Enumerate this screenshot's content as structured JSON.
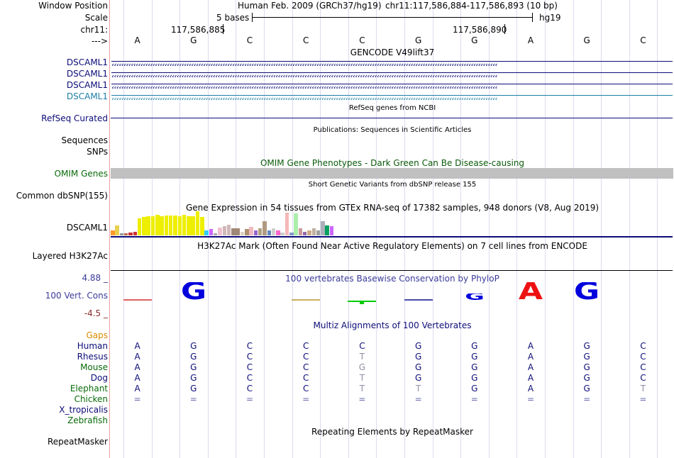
{
  "header": {
    "window_position_label": "Window Position",
    "scale_label": "Scale",
    "chrom_label": "chr11:",
    "strand_label": "--->",
    "assembly_text": "Human Feb. 2009 (GRCh37/hg19)",
    "position_text": "chr11:117,586,884-117,586,893 (10 bp)",
    "scale_text": "5 bases",
    "db_text": "hg19",
    "coord_left": "117,586,885",
    "coord_right": "117,586,890"
  },
  "bases": [
    "A",
    "G",
    "C",
    "C",
    "C",
    "G",
    "G",
    "A",
    "G",
    "C"
  ],
  "tracks": {
    "gencode": {
      "title": "GENCODE V49lift37",
      "genes": [
        "DSCAML1",
        "DSCAML1",
        "DSCAML1",
        "DSCAML1"
      ],
      "colors": [
        "#0c0c78",
        "#0c0c78",
        "#0c0c78",
        "#1d7fa6"
      ]
    },
    "refseq": {
      "label": "RefSeq Curated",
      "title": "RefSeq genes from NCBI"
    },
    "publications": {
      "title": "Publications: Sequences in Scientific Articles",
      "label_sequences": "Sequences",
      "label_snps": "SNPs"
    },
    "omim": {
      "title": "OMIM Gene Phenotypes - Dark Green Can Be Disease-causing",
      "label": "OMIM Genes"
    },
    "dbsnp": {
      "title": "Short Genetic Variants from dbSNP release 155",
      "label": "Common dbSNP(155)"
    },
    "gtex": {
      "title": "Gene Expression in 54 tissues from GTEx RNA-seq of 17382 samples, 948 donors (V8, Aug 2019)",
      "label": "DSCAML1",
      "bars": [
        {
          "v": 0.2,
          "c": "#ff9a2b"
        },
        {
          "v": 0.4,
          "c": "#e8d04e"
        },
        {
          "v": 0.1,
          "c": "#999999"
        },
        {
          "v": 0.1,
          "c": "#c46a4a"
        },
        {
          "v": 0.12,
          "c": "#cc3333"
        },
        {
          "v": 0.15,
          "c": "#cc3333"
        },
        {
          "v": 0.7,
          "c": "#eeee00"
        },
        {
          "v": 0.75,
          "c": "#eeee00"
        },
        {
          "v": 0.78,
          "c": "#eeee00"
        },
        {
          "v": 0.78,
          "c": "#eeee00"
        },
        {
          "v": 0.85,
          "c": "#eeee00"
        },
        {
          "v": 0.8,
          "c": "#eeee00"
        },
        {
          "v": 0.82,
          "c": "#eeee00"
        },
        {
          "v": 0.82,
          "c": "#eeee00"
        },
        {
          "v": 0.82,
          "c": "#eeee00"
        },
        {
          "v": 0.8,
          "c": "#eeee00"
        },
        {
          "v": 0.85,
          "c": "#eeee00"
        },
        {
          "v": 0.8,
          "c": "#eeee00"
        },
        {
          "v": 0.78,
          "c": "#eeee00"
        },
        {
          "v": 1.0,
          "c": "#eeee00"
        },
        {
          "v": 0.75,
          "c": "#eeee00"
        },
        {
          "v": 0.2,
          "c": "#33ccff"
        },
        {
          "v": 0.25,
          "c": "#cc66ff"
        },
        {
          "v": 0.1,
          "c": "#aaaaaa"
        },
        {
          "v": 0.32,
          "c": "#f0c0d0"
        },
        {
          "v": 0.38,
          "c": "#d0b8b8"
        },
        {
          "v": 0.45,
          "c": "#d0b8b8"
        },
        {
          "v": 0.3,
          "c": "#a08878"
        },
        {
          "v": 0.28,
          "c": "#a08878"
        },
        {
          "v": 0.15,
          "c": "#ddd0c0"
        },
        {
          "v": 0.25,
          "c": "#b09070"
        },
        {
          "v": 0.35,
          "c": "#f0b8c0"
        },
        {
          "v": 0.2,
          "c": "#9966cc"
        },
        {
          "v": 0.28,
          "c": "#b0a080"
        },
        {
          "v": 0.6,
          "c": "#b09a80"
        },
        {
          "v": 0.22,
          "c": "#6688bb"
        },
        {
          "v": 0.3,
          "c": "#d0d0d0"
        },
        {
          "v": 0.22,
          "c": "#ff66cc"
        },
        {
          "v": 0.12,
          "c": "#cccccc"
        },
        {
          "v": 0.95,
          "c": "#f4b8b8"
        },
        {
          "v": 0.12,
          "c": "#8899cc"
        },
        {
          "v": 0.9,
          "c": "#aaeeaa"
        },
        {
          "v": 0.28,
          "c": "#cc9999"
        },
        {
          "v": 0.15,
          "c": "#9966aa"
        },
        {
          "v": 0.2,
          "c": "#ccaa88"
        },
        {
          "v": 0.3,
          "c": "#c0b0a0"
        },
        {
          "v": 0.2,
          "c": "#a0a0a0"
        },
        {
          "v": 0.6,
          "c": "#aab0b8"
        },
        {
          "v": 0.4,
          "c": "#00a060"
        },
        {
          "v": 0.38,
          "c": "#cc66ff"
        }
      ]
    },
    "h3k27ac": {
      "title": "H3K27Ac Mark (Often Found Near Active Regulatory Elements) on 7 cell lines from ENCODE",
      "label": "Layered H3K27Ac"
    },
    "phylop": {
      "title": "100 vertebrates Basewise Conservation by PhyloP",
      "label": "100 Vert. Cons",
      "max": "4.88 _",
      "min": "-4.5 _",
      "logo": [
        {
          "t": "line",
          "c": "#e06060"
        },
        {
          "t": "letter",
          "l": "G",
          "c": "#0000dd"
        },
        {
          "t": "none"
        },
        {
          "t": "line",
          "c": "#c9b060"
        },
        {
          "t": "tick",
          "c": "#00cc00"
        },
        {
          "t": "line",
          "c": "#4a4aaa"
        },
        {
          "t": "flat",
          "l": "G",
          "c": "#0000dd"
        },
        {
          "t": "letter",
          "l": "A",
          "c": "#ee1111"
        },
        {
          "t": "letter",
          "l": "G",
          "c": "#0000dd"
        },
        {
          "t": "none"
        }
      ]
    },
    "multiz": {
      "title": "Multiz Alignments of 100 Vertebrates",
      "gaps_label": "Gaps",
      "species": [
        {
          "name": "Human",
          "color": "#0c0c78",
          "seq": [
            "A",
            "G",
            "C",
            "C",
            "C",
            "G",
            "G",
            "A",
            "G",
            "C"
          ]
        },
        {
          "name": "Rhesus",
          "color": "#0c0c78",
          "seq": [
            "A",
            "G",
            "C",
            "C",
            "T",
            "G",
            "G",
            "A",
            "G",
            "C"
          ]
        },
        {
          "name": "Mouse",
          "color": "#0a6b0a",
          "seq": [
            "A",
            "G",
            "C",
            "C",
            "G",
            "G",
            "G",
            "A",
            "G",
            "C"
          ]
        },
        {
          "name": "Dog",
          "color": "#0c0c78",
          "seq": [
            "A",
            "G",
            "C",
            "C",
            "T",
            "G",
            "G",
            "A",
            "G",
            "C"
          ]
        },
        {
          "name": "Elephant",
          "color": "#0a6b0a",
          "seq": [
            "A",
            "G",
            "C",
            "C",
            "T",
            "T",
            "G",
            "A",
            "G",
            "T"
          ]
        },
        {
          "name": "Chicken",
          "color": "#0a6b0a",
          "seq": [
            "=",
            "=",
            "=",
            "=",
            "=",
            "=",
            "=",
            "=",
            "=",
            "="
          ]
        },
        {
          "name": "X_tropicalis",
          "color": "#0c0c78",
          "seq": []
        },
        {
          "name": "Zebrafish",
          "color": "#0a6b0a",
          "seq": []
        }
      ]
    },
    "repeatmasker": {
      "title": "Repeating Elements by RepeatMasker",
      "label": "RepeatMasker"
    }
  }
}
